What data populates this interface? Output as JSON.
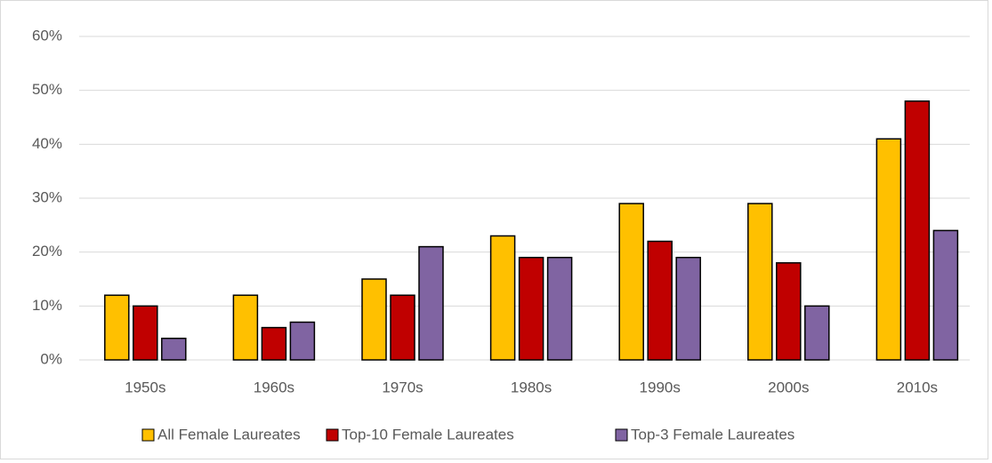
{
  "chart_data": {
    "type": "bar",
    "categories": [
      "1950s",
      "1960s",
      "1970s",
      "1980s",
      "1990s",
      "2000s",
      "2010s"
    ],
    "series": [
      {
        "name": "All Female Laureates",
        "color": "#FFC000",
        "values": [
          12,
          12,
          15,
          23,
          29,
          29,
          41
        ]
      },
      {
        "name": "Top-10 Female Laureates",
        "color": "#C00000",
        "values": [
          10,
          6,
          12,
          19,
          22,
          18,
          48
        ]
      },
      {
        "name": "Top-3 Female Laureates",
        "color": "#8064A2",
        "values": [
          4,
          7,
          21,
          19,
          19,
          10,
          24
        ]
      }
    ],
    "ylim": [
      0,
      60
    ],
    "yticks": [
      {
        "value": 0,
        "label": "0%"
      },
      {
        "value": 10,
        "label": "10%"
      },
      {
        "value": 20,
        "label": "20%"
      },
      {
        "value": 30,
        "label": "30%"
      },
      {
        "value": 40,
        "label": "40%"
      },
      {
        "value": 50,
        "label": "50%"
      },
      {
        "value": 60,
        "label": "60%"
      }
    ],
    "grid": true,
    "legend": "bottom"
  }
}
